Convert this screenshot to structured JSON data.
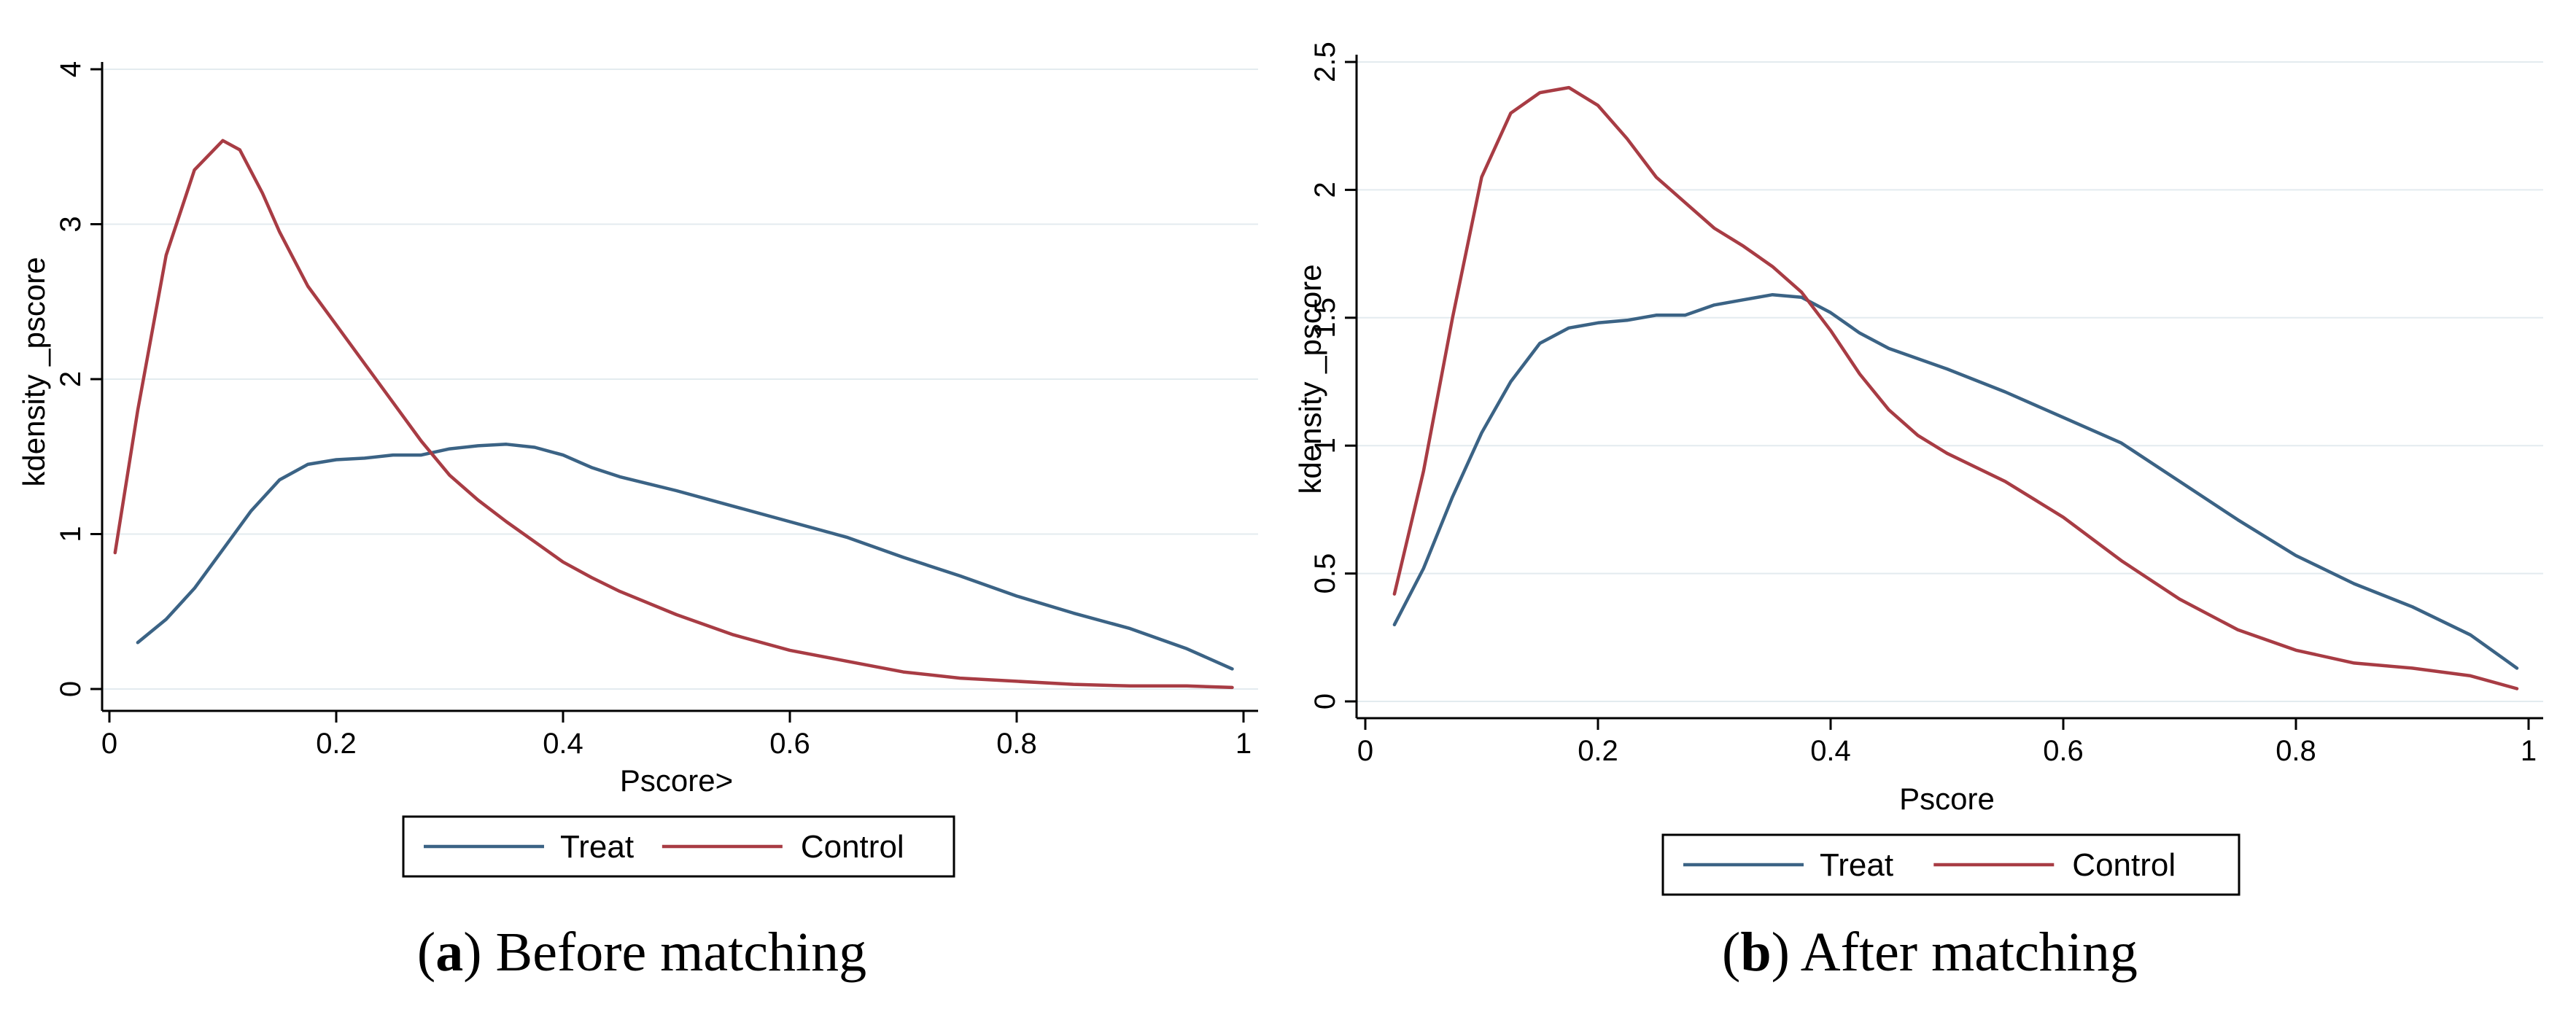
{
  "chart_data": [
    {
      "id": "a",
      "type": "line",
      "caption": {
        "letter": "a",
        "text": "Before matching"
      },
      "xlabel": "Pscore>",
      "ylabel": "kdensity _pscore",
      "xlim": [
        0,
        1
      ],
      "ylim": [
        0,
        4
      ],
      "xticks": [
        "0",
        "0.2",
        "0.4",
        "0.6",
        "0.8",
        "1"
      ],
      "yticks": [
        "0",
        "1",
        "2",
        "3",
        "4"
      ],
      "grid": true,
      "legend_position": "bottom",
      "series": [
        {
          "name": "Treat",
          "color": "#3b6385",
          "x": [
            0.025,
            0.05,
            0.075,
            0.1,
            0.125,
            0.15,
            0.175,
            0.2,
            0.225,
            0.25,
            0.275,
            0.3,
            0.325,
            0.35,
            0.375,
            0.4,
            0.425,
            0.45,
            0.5,
            0.55,
            0.6,
            0.65,
            0.7,
            0.75,
            0.8,
            0.85,
            0.9,
            0.95,
            0.99
          ],
          "y": [
            0.3,
            0.45,
            0.65,
            0.9,
            1.15,
            1.35,
            1.45,
            1.48,
            1.49,
            1.51,
            1.51,
            1.55,
            1.57,
            1.58,
            1.56,
            1.51,
            1.43,
            1.37,
            1.28,
            1.18,
            1.08,
            0.98,
            0.85,
            0.73,
            0.6,
            0.49,
            0.39,
            0.26,
            0.13
          ]
        },
        {
          "name": "Control",
          "color": "#a83c44",
          "x": [
            0.005,
            0.025,
            0.05,
            0.075,
            0.1,
            0.115,
            0.135,
            0.15,
            0.175,
            0.2,
            0.225,
            0.25,
            0.275,
            0.3,
            0.325,
            0.35,
            0.375,
            0.4,
            0.425,
            0.45,
            0.5,
            0.55,
            0.6,
            0.65,
            0.7,
            0.75,
            0.8,
            0.85,
            0.9,
            0.95,
            0.99
          ],
          "y": [
            0.88,
            1.8,
            2.8,
            3.35,
            3.54,
            3.48,
            3.2,
            2.95,
            2.6,
            2.35,
            2.1,
            1.85,
            1.6,
            1.38,
            1.22,
            1.08,
            0.95,
            0.82,
            0.72,
            0.63,
            0.48,
            0.35,
            0.25,
            0.18,
            0.11,
            0.07,
            0.05,
            0.03,
            0.02,
            0.02,
            0.01
          ]
        }
      ]
    },
    {
      "id": "b",
      "type": "line",
      "caption": {
        "letter": "b",
        "text": "After matching"
      },
      "xlabel": "Pscore",
      "ylabel": "kdensity _pscore",
      "xlim": [
        0,
        1
      ],
      "ylim": [
        0,
        2.5
      ],
      "xticks": [
        "0",
        "0.2",
        "0.4",
        "0.6",
        "0.8",
        "1"
      ],
      "yticks": [
        "0",
        "0.5",
        "1",
        "1.5",
        "2",
        "2.5"
      ],
      "grid": true,
      "legend_position": "bottom",
      "series": [
        {
          "name": "Treat",
          "color": "#3b6385",
          "x": [
            0.025,
            0.05,
            0.075,
            0.1,
            0.125,
            0.15,
            0.175,
            0.2,
            0.225,
            0.25,
            0.275,
            0.3,
            0.325,
            0.35,
            0.375,
            0.4,
            0.425,
            0.45,
            0.5,
            0.55,
            0.6,
            0.65,
            0.7,
            0.75,
            0.8,
            0.85,
            0.9,
            0.95,
            0.99
          ],
          "y": [
            0.3,
            0.52,
            0.8,
            1.05,
            1.25,
            1.4,
            1.46,
            1.48,
            1.49,
            1.51,
            1.51,
            1.55,
            1.57,
            1.59,
            1.58,
            1.52,
            1.44,
            1.38,
            1.3,
            1.21,
            1.11,
            1.01,
            0.86,
            0.71,
            0.57,
            0.46,
            0.37,
            0.26,
            0.13
          ]
        },
        {
          "name": "Control",
          "color": "#a83c44",
          "x": [
            0.025,
            0.05,
            0.075,
            0.1,
            0.125,
            0.15,
            0.175,
            0.2,
            0.225,
            0.25,
            0.275,
            0.3,
            0.325,
            0.35,
            0.375,
            0.4,
            0.425,
            0.45,
            0.475,
            0.5,
            0.55,
            0.6,
            0.65,
            0.7,
            0.75,
            0.8,
            0.85,
            0.9,
            0.95,
            0.99
          ],
          "y": [
            0.42,
            0.9,
            1.5,
            2.05,
            2.3,
            2.38,
            2.4,
            2.33,
            2.2,
            2.05,
            1.95,
            1.85,
            1.78,
            1.7,
            1.6,
            1.45,
            1.28,
            1.14,
            1.04,
            0.97,
            0.86,
            0.72,
            0.55,
            0.4,
            0.28,
            0.2,
            0.15,
            0.13,
            0.1,
            0.05
          ]
        }
      ]
    }
  ]
}
